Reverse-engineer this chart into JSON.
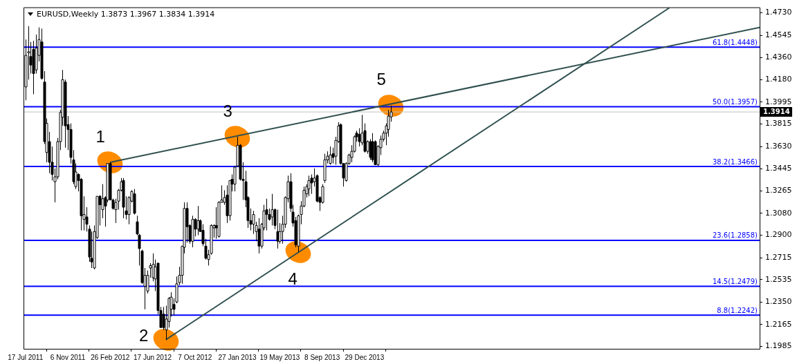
{
  "chart_data": {
    "type": "candlestick",
    "title": "EURUSD,Weekly 1.3873 1.3967 1.3834 1.3914",
    "color": "#000000",
    "marker": "none",
    "x": [
      "2011-07-17",
      "2011-07-24",
      "2011-07-31",
      "2011-08-07",
      "2011-08-14",
      "2011-08-21",
      "2011-08-28",
      "2011-09-04",
      "2011-09-11",
      "2011-09-18",
      "2011-09-25",
      "2011-10-02",
      "2011-10-09",
      "2011-10-16",
      "2011-10-23",
      "2011-10-30",
      "2011-11-06",
      "2011-11-13",
      "2011-11-20",
      "2011-11-27",
      "2011-12-04",
      "2011-12-11",
      "2011-12-18",
      "2011-12-25",
      "2012-01-01",
      "2012-01-08",
      "2012-01-15",
      "2012-01-22",
      "2012-01-29",
      "2012-02-05",
      "2012-02-12",
      "2012-02-19",
      "2012-02-26",
      "2012-03-04",
      "2012-03-11",
      "2012-03-18",
      "2012-03-25",
      "2012-04-01",
      "2012-04-08",
      "2012-04-15",
      "2012-04-22",
      "2012-04-29",
      "2012-05-06",
      "2012-05-13",
      "2012-05-20",
      "2012-05-27",
      "2012-06-03",
      "2012-06-10",
      "2012-06-17",
      "2012-06-24",
      "2012-07-01",
      "2012-07-08",
      "2012-07-15",
      "2012-07-22",
      "2012-07-29",
      "2012-08-05",
      "2012-08-12",
      "2012-08-19",
      "2012-08-26",
      "2012-09-02",
      "2012-09-09",
      "2012-09-16",
      "2012-09-23",
      "2012-09-30",
      "2012-10-07",
      "2012-10-14",
      "2012-10-21",
      "2012-10-28",
      "2012-11-04",
      "2012-11-11",
      "2012-11-18",
      "2012-11-25",
      "2012-12-02",
      "2012-12-09",
      "2012-12-16",
      "2012-12-23",
      "2012-12-30",
      "2013-01-06",
      "2013-01-13",
      "2013-01-20",
      "2013-01-27",
      "2013-02-03",
      "2013-02-10",
      "2013-02-17",
      "2013-02-24",
      "2013-03-03",
      "2013-03-10",
      "2013-03-17",
      "2013-03-24",
      "2013-03-31",
      "2013-04-07",
      "2013-04-14",
      "2013-04-21",
      "2013-04-28",
      "2013-05-05",
      "2013-05-12",
      "2013-05-19",
      "2013-05-26",
      "2013-06-02",
      "2013-06-09",
      "2013-06-16",
      "2013-06-23",
      "2013-06-30",
      "2013-07-07",
      "2013-07-14",
      "2013-07-21",
      "2013-07-28",
      "2013-08-04",
      "2013-08-11",
      "2013-08-18",
      "2013-08-25",
      "2013-09-01",
      "2013-09-08",
      "2013-09-15",
      "2013-09-22",
      "2013-09-29",
      "2013-10-06",
      "2013-10-13",
      "2013-10-20",
      "2013-10-27",
      "2013-11-03",
      "2013-11-10",
      "2013-11-17",
      "2013-11-24",
      "2013-12-01",
      "2013-12-08",
      "2013-12-15",
      "2013-12-22",
      "2013-12-29",
      "2014-01-05",
      "2014-01-12",
      "2014-01-19",
      "2014-01-26",
      "2014-02-02",
      "2014-02-09",
      "2014-02-16",
      "2014-02-23",
      "2014-03-02",
      "2014-03-09"
    ],
    "ohlc": [
      [
        1.412,
        1.451,
        1.401,
        1.438
      ],
      [
        1.44,
        1.462,
        1.418,
        1.441
      ],
      [
        1.437,
        1.449,
        1.423,
        1.43
      ],
      [
        1.443,
        1.45,
        1.406,
        1.423
      ],
      [
        1.426,
        1.455,
        1.423,
        1.444
      ],
      [
        1.438,
        1.461,
        1.433,
        1.451
      ],
      [
        1.449,
        1.46,
        1.418,
        1.419
      ],
      [
        1.416,
        1.425,
        1.365,
        1.367
      ],
      [
        1.358,
        1.386,
        1.35,
        1.382
      ],
      [
        1.367,
        1.375,
        1.341,
        1.35
      ],
      [
        1.35,
        1.363,
        1.335,
        1.34
      ],
      [
        1.334,
        1.345,
        1.317,
        1.338
      ],
      [
        1.338,
        1.37,
        1.336,
        1.367
      ],
      [
        1.367,
        1.393,
        1.36,
        1.391
      ],
      [
        1.387,
        1.426,
        1.38,
        1.418
      ],
      [
        1.416,
        1.418,
        1.362,
        1.38
      ],
      [
        1.381,
        1.388,
        1.36,
        1.377
      ],
      [
        1.377,
        1.382,
        1.349,
        1.354
      ],
      [
        1.352,
        1.36,
        1.332,
        1.334
      ],
      [
        1.33,
        1.349,
        1.328,
        1.342
      ],
      [
        1.34,
        1.341,
        1.326,
        1.335
      ],
      [
        1.336,
        1.337,
        1.294,
        1.306
      ],
      [
        1.303,
        1.322,
        1.294,
        1.307
      ],
      [
        1.305,
        1.313,
        1.293,
        1.299
      ],
      [
        1.295,
        1.298,
        1.268,
        1.272
      ],
      [
        1.271,
        1.293,
        1.263,
        1.268
      ],
      [
        1.263,
        1.298,
        1.262,
        1.293
      ],
      [
        1.288,
        1.322,
        1.287,
        1.322
      ],
      [
        1.322,
        1.323,
        1.298,
        1.315
      ],
      [
        1.311,
        1.332,
        1.304,
        1.32
      ],
      [
        1.321,
        1.322,
        1.297,
        1.314
      ],
      [
        1.319,
        1.349,
        1.317,
        1.349
      ],
      [
        1.349,
        1.35,
        1.319,
        1.319
      ],
      [
        1.319,
        1.32,
        1.311,
        1.312
      ],
      [
        1.311,
        1.32,
        1.3,
        1.317
      ],
      [
        1.318,
        1.328,
        1.311,
        1.327
      ],
      [
        1.327,
        1.337,
        1.326,
        1.334
      ],
      [
        1.335,
        1.337,
        1.304,
        1.313
      ],
      [
        1.31,
        1.322,
        1.303,
        1.307
      ],
      [
        1.307,
        1.322,
        1.299,
        1.321
      ],
      [
        1.318,
        1.327,
        1.317,
        1.326
      ],
      [
        1.324,
        1.328,
        1.307,
        1.308
      ],
      [
        1.301,
        1.306,
        1.29,
        1.291
      ],
      [
        1.29,
        1.291,
        1.265,
        1.279
      ],
      [
        1.277,
        1.278,
        1.25,
        1.251
      ],
      [
        1.248,
        1.263,
        1.229,
        1.257
      ],
      [
        1.244,
        1.261,
        1.242,
        1.257
      ],
      [
        1.263,
        1.267,
        1.255,
        1.265
      ],
      [
        1.255,
        1.275,
        1.252,
        1.266
      ],
      [
        1.254,
        1.27,
        1.244,
        1.264
      ],
      [
        1.267,
        1.267,
        1.225,
        1.228
      ],
      [
        1.228,
        1.231,
        1.214,
        1.214
      ],
      [
        1.225,
        1.231,
        1.212,
        1.214
      ],
      [
        1.212,
        1.232,
        1.204,
        1.221
      ],
      [
        1.219,
        1.239,
        1.214,
        1.238
      ],
      [
        1.229,
        1.243,
        1.223,
        1.239
      ],
      [
        1.233,
        1.238,
        1.224,
        1.229
      ],
      [
        1.235,
        1.256,
        1.234,
        1.25
      ],
      [
        1.251,
        1.264,
        1.249,
        1.257
      ],
      [
        1.257,
        1.281,
        1.25,
        1.281
      ],
      [
        1.28,
        1.317,
        1.275,
        1.312
      ],
      [
        1.312,
        1.317,
        1.284,
        1.297
      ],
      [
        1.298,
        1.299,
        1.283,
        1.285
      ],
      [
        1.285,
        1.306,
        1.28,
        1.303
      ],
      [
        1.303,
        1.304,
        1.289,
        1.295
      ],
      [
        1.295,
        1.314,
        1.29,
        1.302
      ],
      [
        1.302,
        1.303,
        1.293,
        1.293
      ],
      [
        1.294,
        1.299,
        1.281,
        1.283
      ],
      [
        1.281,
        1.287,
        1.27,
        1.271
      ],
      [
        1.27,
        1.278,
        1.265,
        1.274
      ],
      [
        1.275,
        1.299,
        1.274,
        1.298
      ],
      [
        1.296,
        1.299,
        1.288,
        1.298
      ],
      [
        1.298,
        1.313,
        1.287,
        1.296
      ],
      [
        1.289,
        1.318,
        1.288,
        1.317
      ],
      [
        1.317,
        1.331,
        1.317,
        1.319
      ],
      [
        1.317,
        1.327,
        1.315,
        1.321
      ],
      [
        1.323,
        1.331,
        1.3,
        1.306
      ],
      [
        1.306,
        1.335,
        1.302,
        1.335
      ],
      [
        1.336,
        1.34,
        1.326,
        1.332
      ],
      [
        1.332,
        1.347,
        1.326,
        1.346
      ],
      [
        1.347,
        1.371,
        1.346,
        1.364
      ],
      [
        1.364,
        1.365,
        1.335,
        1.336
      ],
      [
        1.336,
        1.35,
        1.319,
        1.335
      ],
      [
        1.334,
        1.343,
        1.313,
        1.319
      ],
      [
        1.321,
        1.322,
        1.296,
        1.302
      ],
      [
        1.302,
        1.312,
        1.294,
        1.299
      ],
      [
        1.299,
        1.31,
        1.291,
        1.307
      ],
      [
        1.293,
        1.301,
        1.285,
        1.298
      ],
      [
        1.295,
        1.304,
        1.275,
        1.281
      ],
      [
        1.281,
        1.3,
        1.279,
        1.299
      ],
      [
        1.296,
        1.315,
        1.294,
        1.31
      ],
      [
        1.311,
        1.32,
        1.294,
        1.307
      ],
      [
        1.307,
        1.312,
        1.302,
        1.303
      ],
      [
        1.305,
        1.324,
        1.298,
        1.311
      ],
      [
        1.311,
        1.312,
        1.295,
        1.298
      ],
      [
        1.293,
        1.311,
        1.279,
        1.285
      ],
      [
        1.285,
        1.3,
        1.283,
        1.293
      ],
      [
        1.293,
        1.306,
        1.283,
        1.299
      ],
      [
        1.299,
        1.322,
        1.296,
        1.321
      ],
      [
        1.32,
        1.339,
        1.317,
        1.334
      ],
      [
        1.334,
        1.341,
        1.309,
        1.312
      ],
      [
        1.309,
        1.315,
        1.297,
        1.3
      ],
      [
        1.302,
        1.305,
        1.28,
        1.282
      ],
      [
        1.281,
        1.307,
        1.276,
        1.306
      ],
      [
        1.307,
        1.318,
        1.299,
        1.314
      ],
      [
        1.314,
        1.33,
        1.313,
        1.327
      ],
      [
        1.324,
        1.332,
        1.321,
        1.33
      ],
      [
        1.328,
        1.339,
        1.322,
        1.335
      ],
      [
        1.337,
        1.34,
        1.324,
        1.333
      ],
      [
        1.334,
        1.345,
        1.33,
        1.337
      ],
      [
        1.339,
        1.34,
        1.317,
        1.318
      ],
      [
        1.321,
        1.322,
        1.31,
        1.317
      ],
      [
        1.317,
        1.332,
        1.316,
        1.33
      ],
      [
        1.335,
        1.357,
        1.333,
        1.352
      ],
      [
        1.352,
        1.359,
        1.349,
        1.355
      ],
      [
        1.349,
        1.363,
        1.348,
        1.356
      ],
      [
        1.357,
        1.362,
        1.349,
        1.354
      ],
      [
        1.355,
        1.371,
        1.348,
        1.368
      ],
      [
        1.367,
        1.383,
        1.366,
        1.38
      ],
      [
        1.381,
        1.382,
        1.348,
        1.349
      ],
      [
        1.349,
        1.349,
        1.33,
        1.337
      ],
      [
        1.335,
        1.35,
        1.334,
        1.349
      ],
      [
        1.349,
        1.357,
        1.348,
        1.356
      ],
      [
        1.354,
        1.364,
        1.35,
        1.359
      ],
      [
        1.359,
        1.372,
        1.358,
        1.371
      ],
      [
        1.374,
        1.376,
        1.367,
        1.371
      ],
      [
        1.373,
        1.378,
        1.363,
        1.367
      ],
      [
        1.366,
        1.389,
        1.364,
        1.374
      ],
      [
        1.376,
        1.382,
        1.358,
        1.359
      ],
      [
        1.359,
        1.368,
        1.357,
        1.367
      ],
      [
        1.367,
        1.369,
        1.352,
        1.354
      ],
      [
        1.367,
        1.374,
        1.35,
        1.352
      ],
      [
        1.367,
        1.368,
        1.348,
        1.348
      ],
      [
        1.348,
        1.364,
        1.347,
        1.363
      ],
      [
        1.362,
        1.372,
        1.356,
        1.369
      ],
      [
        1.369,
        1.376,
        1.367,
        1.374
      ],
      [
        1.374,
        1.382,
        1.364,
        1.38
      ],
      [
        1.377,
        1.393,
        1.371,
        1.388
      ],
      [
        1.3873,
        1.3967,
        1.3834,
        1.3914
      ]
    ],
    "colors": [
      "#ffffff",
      "#ffffff",
      "#000000",
      "#000000",
      "#ffffff",
      "#ffffff",
      "#000000",
      "#000000",
      "#ffffff",
      "#000000",
      "#000000",
      "#ffffff",
      "#ffffff",
      "#ffffff",
      "#ffffff",
      "#000000",
      "#000000",
      "#000000",
      "#000000",
      "#ffffff",
      "#000000",
      "#000000",
      "#ffffff",
      "#000000",
      "#000000",
      "#000000",
      "#ffffff",
      "#ffffff",
      "#000000",
      "#ffffff",
      "#000000",
      "#ffffff",
      "#000000",
      "#000000",
      "#ffffff",
      "#ffffff",
      "#ffffff",
      "#000000",
      "#000000",
      "#ffffff",
      "#ffffff",
      "#000000",
      "#000000",
      "#000000",
      "#000000",
      "#ffffff",
      "#ffffff",
      "#ffffff",
      "#ffffff",
      "#ffffff",
      "#000000",
      "#000000",
      "#000000",
      "#ffffff",
      "#ffffff",
      "#ffffff",
      "#000000",
      "#ffffff",
      "#ffffff",
      "#ffffff",
      "#ffffff",
      "#000000",
      "#000000",
      "#ffffff",
      "#000000",
      "#ffffff",
      "#000000",
      "#000000",
      "#000000",
      "#ffffff",
      "#ffffff",
      "#ffffff",
      "#000000",
      "#ffffff",
      "#ffffff",
      "#ffffff",
      "#000000",
      "#ffffff",
      "#000000",
      "#ffffff",
      "#ffffff",
      "#000000",
      "#000000",
      "#000000",
      "#000000",
      "#000000",
      "#ffffff",
      "#ffffff",
      "#000000",
      "#ffffff",
      "#ffffff",
      "#000000",
      "#000000",
      "#ffffff",
      "#000000",
      "#000000",
      "#ffffff",
      "#ffffff",
      "#ffffff",
      "#ffffff",
      "#000000",
      "#000000",
      "#000000",
      "#ffffff",
      "#ffffff",
      "#ffffff",
      "#ffffff",
      "#ffffff",
      "#000000",
      "#ffffff",
      "#000000",
      "#000000",
      "#ffffff",
      "#ffffff",
      "#ffffff",
      "#ffffff",
      "#000000",
      "#ffffff",
      "#ffffff",
      "#000000",
      "#000000",
      "#ffffff",
      "#ffffff",
      "#ffffff",
      "#ffffff",
      "#000000",
      "#000000",
      "#ffffff",
      "#000000",
      "#ffffff",
      "#000000",
      "#000000",
      "#000000",
      "#ffffff",
      "#ffffff",
      "#ffffff",
      "#ffffff",
      "#ffffff",
      "#ffffff"
    ],
    "series": [
      {
        "type": "line",
        "color": "#2f4f4f",
        "x": [
          "2012-02-26",
          "2016-11-07"
        ],
        "values": [
          1.35,
          1.461
        ]
      },
      {
        "type": "line",
        "color": "#2f4f4f",
        "x": [
          "2012-07-22",
          "2016-03-13"
        ],
        "values": [
          1.204,
          1.477
        ]
      }
    ],
    "xlim": [
      "2011-07-12",
      "2016-11-07"
    ],
    "xticks": [
      {
        "value": "2011-07-17",
        "label": "17 Jul 2011"
      },
      {
        "value": "2011-11-06",
        "label": "6 Nov 2011"
      },
      {
        "value": "2012-02-26",
        "label": "26 Feb 2012"
      },
      {
        "value": "2012-06-17",
        "label": "17 Jun 2012"
      },
      {
        "value": "2012-10-07",
        "label": "7 Oct 2012"
      },
      {
        "value": "2013-01-27",
        "label": "27 Jan 2013"
      },
      {
        "value": "2013-05-19",
        "label": "19 May 2013"
      },
      {
        "value": "2013-09-08",
        "label": "8 Sep 2013"
      },
      {
        "value": "2013-12-29",
        "label": "29 Dec 2013"
      }
    ],
    "ylim": [
      1.1965,
      1.4775
    ],
    "yticks": [
      {
        "value": 1.473,
        "label": "1.4730"
      },
      1.4545,
      {
        "value": 1.436,
        "label": "1.4360"
      },
      {
        "value": 1.418,
        "label": "1.4180"
      },
      1.3995,
      1.3815,
      {
        "value": 1.363,
        "label": "1.3630"
      },
      1.3445,
      1.3265,
      {
        "value": 1.308,
        "label": "1.3080"
      },
      {
        "value": 1.29,
        "label": "1.2900"
      },
      1.2715,
      1.2535,
      {
        "value": 1.235,
        "label": "1.2350"
      },
      1.2165,
      1.1985
    ],
    "ref_lines": [
      {
        "axis": "y",
        "value": 1.4448,
        "label": "61.8(1.4448)",
        "color": "#0000ff"
      },
      {
        "axis": "y",
        "value": 1.3957,
        "label": "50.0(1.3957)",
        "color": "#0000ff"
      },
      {
        "axis": "y",
        "value": 1.3466,
        "label": "38.2(1.3466)",
        "color": "#0000ff"
      },
      {
        "axis": "y",
        "value": 1.2858,
        "label": "23.6(1.2858)",
        "color": "#0000ff"
      },
      {
        "axis": "y",
        "value": 1.2479,
        "label": "14.5(1.2479)",
        "color": "#0000ff"
      },
      {
        "axis": "y",
        "value": 1.2242,
        "label": "8.8(1.2242)",
        "color": "#0000ff"
      },
      {
        "axis": "y",
        "value": 1.3914,
        "label": "1.3914",
        "color": "#c0c0c0"
      }
    ],
    "annotations": [
      {
        "text": "1",
        "x": "2012-02-26",
        "y": 1.35
      },
      {
        "text": "2",
        "x": "2012-07-22",
        "y": 1.204
      },
      {
        "text": "3",
        "x": "2013-01-27",
        "y": 1.371
      },
      {
        "text": "4",
        "x": "2013-07-07",
        "y": 1.276
      },
      {
        "text": "5",
        "x": "2014-03-09",
        "y": 1.3967
      }
    ]
  }
}
